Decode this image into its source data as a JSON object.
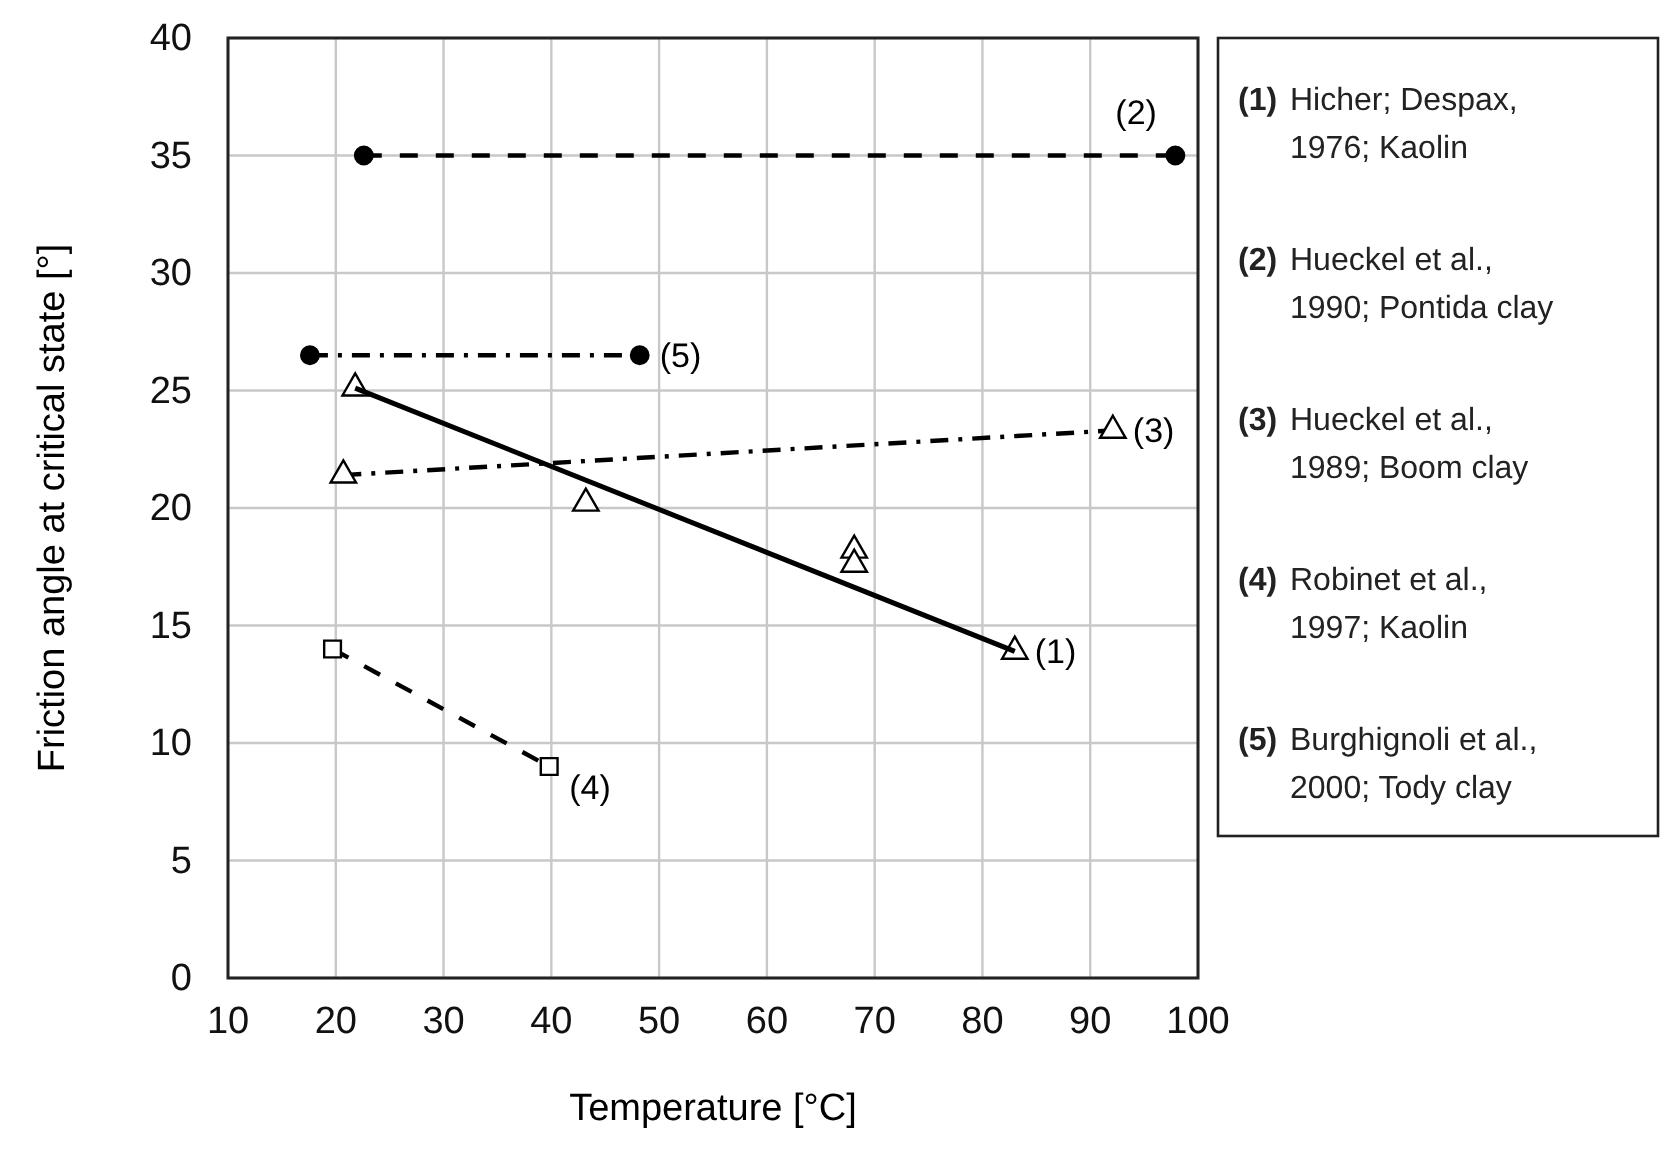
{
  "chart_data": {
    "type": "scatter",
    "xlabel": "Temperature [°C]",
    "ylabel": "Friction angle at critical state [°]",
    "xlim": [
      10,
      100
    ],
    "xticks": [
      10,
      20,
      30,
      40,
      50,
      60,
      70,
      80,
      90,
      100
    ],
    "ylim": [
      0,
      40
    ],
    "yticks": [
      0,
      5,
      10,
      15,
      20,
      25,
      30,
      35,
      40
    ],
    "grid": true,
    "series": [
      {
        "name": "(1)",
        "marker": "triangle",
        "color": "#000000",
        "x": [
          21.8,
          43.2,
          68.1,
          68.1,
          83.0
        ],
        "values": [
          25.1,
          20.2,
          18.2,
          17.6,
          13.9
        ]
      },
      {
        "type": "line",
        "marker": "none",
        "line_style": "solid",
        "color": "#000000",
        "x": [
          21.8,
          83.0
        ],
        "values": [
          25.1,
          13.9
        ]
      },
      {
        "name": "(2)",
        "type": "line",
        "marker": "circle",
        "line_style": "dashed",
        "color": "#000000",
        "x": [
          22.6,
          97.9
        ],
        "values": [
          35,
          35
        ]
      },
      {
        "name": "(3)",
        "type": "line",
        "marker": "triangle",
        "line_style": "dashdot",
        "color": "#000000",
        "x": [
          20.7,
          92.1
        ],
        "values": [
          21.4,
          23.3
        ]
      },
      {
        "name": "(4)",
        "type": "line",
        "marker": "square",
        "line_style": "dashed",
        "color": "#000000",
        "x": [
          19.7,
          39.8
        ],
        "values": [
          14.0,
          9.0
        ]
      },
      {
        "name": "(5)",
        "type": "line",
        "marker": "circle",
        "line_style": "dashdot",
        "color": "#000000",
        "x": [
          17.6,
          48.2
        ],
        "values": [
          26.5,
          26.5
        ]
      }
    ],
    "annotations": [
      "(1) Hicher; Despax, 1976; Kaolin",
      "(2) Hueckel et al., 1990; Pontida clay",
      "(3) Hueckel et al., 1989; Boom clay",
      "(4) Robinet et al., 1997; Kaolin",
      "(5) Burghignoli et al., 2000; Tody clay"
    ]
  }
}
